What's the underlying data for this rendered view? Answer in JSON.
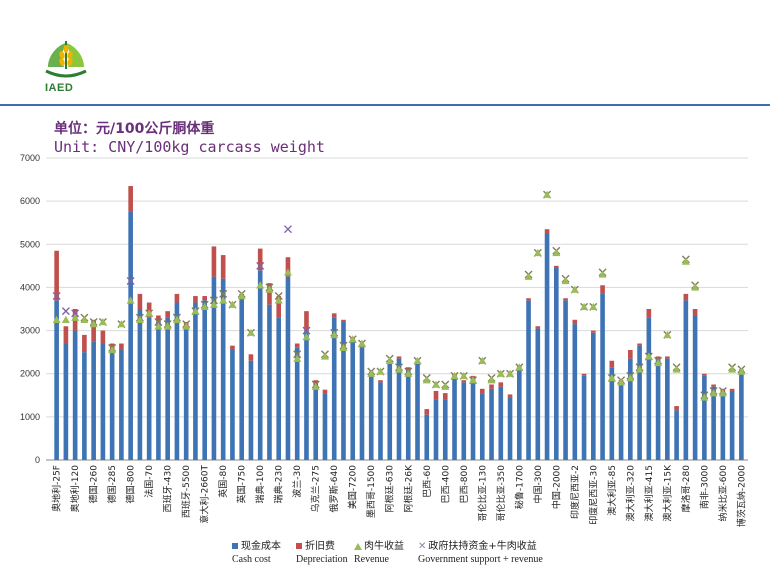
{
  "header": {
    "logo_text": "IAED",
    "unit_zh": "单位：元/100公斤胴体重",
    "unit_en": "Unit: CNY/100kg carcass weight"
  },
  "legend": {
    "cash_zh": "现金成本",
    "cash_en": "Cash cost",
    "dep_zh": "折旧费",
    "dep_en": "Depreciation",
    "rev_zh": "肉牛收益",
    "rev_en": "Revenue",
    "gov_zh": "政府扶持资金+牛肉收益",
    "gov_en": "Government support + revenue"
  },
  "colors": {
    "cash": "#3f74b4",
    "depreciation": "#c0504d",
    "revenue": "#9bbb59",
    "government": "#8064a2"
  },
  "chart_data": {
    "type": "bar",
    "ylim": [
      0,
      7000
    ],
    "yticks": [
      0,
      1000,
      2000,
      3000,
      4000,
      5000,
      6000,
      7000
    ],
    "grid": true,
    "categories": [
      {
        "label": "奥地利-25F",
        "labeled": true,
        "cash": 3700,
        "dep": 1150,
        "rev": 3250,
        "gov": 3800,
        "gov_purple": true
      },
      {
        "label": "",
        "labeled": false,
        "cash": 2700,
        "dep": 400,
        "rev": 3250,
        "gov": 3450,
        "gov_purple": true
      },
      {
        "label": "奥地利-120",
        "labeled": true,
        "cash": 3000,
        "dep": 500,
        "rev": 3300,
        "gov": 3400,
        "gov_purple": true
      },
      {
        "label": "",
        "labeled": false,
        "cash": 2500,
        "dep": 400,
        "rev": 3250,
        "gov": 3300,
        "gov_purple": false
      },
      {
        "label": "德国-260",
        "labeled": true,
        "cash": 2750,
        "dep": 500,
        "rev": 3150,
        "gov": 3200,
        "gov_purple": false
      },
      {
        "label": "",
        "labeled": false,
        "cash": 2700,
        "dep": 300,
        "rev": 3200,
        "gov": 3200,
        "gov_purple": false
      },
      {
        "label": "德国-285",
        "labeled": true,
        "cash": 2500,
        "dep": 200,
        "rev": 2550,
        "gov": 2600,
        "gov_purple": false
      },
      {
        "label": "",
        "labeled": false,
        "cash": 2550,
        "dep": 150,
        "rev": 3150,
        "gov": 3150,
        "gov_purple": false
      },
      {
        "label": "德国-800",
        "labeled": true,
        "cash": 5750,
        "dep": 600,
        "rev": 3700,
        "gov": 4150,
        "gov_purple": true
      },
      {
        "label": "",
        "labeled": false,
        "cash": 3500,
        "dep": 350,
        "rev": 3250,
        "gov": 3300,
        "gov_purple": false
      },
      {
        "label": "法国-70",
        "labeled": true,
        "cash": 3300,
        "dep": 350,
        "rev": 3400,
        "gov": 3400,
        "gov_purple": false
      },
      {
        "label": "",
        "labeled": false,
        "cash": 3200,
        "dep": 150,
        "rev": 3100,
        "gov": 3200,
        "gov_purple": false
      },
      {
        "label": "西班牙-430",
        "labeled": true,
        "cash": 3300,
        "dep": 150,
        "rev": 3100,
        "gov": 3150,
        "gov_purple": false
      },
      {
        "label": "",
        "labeled": false,
        "cash": 3650,
        "dep": 200,
        "rev": 3250,
        "gov": 3300,
        "gov_purple": false
      },
      {
        "label": "西班牙-5500",
        "labeled": true,
        "cash": 3100,
        "dep": 100,
        "rev": 3100,
        "gov": 3150,
        "gov_purple": false
      },
      {
        "label": "",
        "labeled": false,
        "cash": 3650,
        "dep": 150,
        "rev": 3450,
        "gov": 3450,
        "gov_purple": false
      },
      {
        "label": "意大利-2660T",
        "labeled": true,
        "cash": 3700,
        "dep": 100,
        "rev": 3550,
        "gov": 3600,
        "gov_purple": false
      },
      {
        "label": "",
        "labeled": false,
        "cash": 4250,
        "dep": 700,
        "rev": 3600,
        "gov": 3700,
        "gov_purple": false
      },
      {
        "label": "英国-80",
        "labeled": true,
        "cash": 4200,
        "dep": 550,
        "rev": 3700,
        "gov": 3850,
        "gov_purple": false
      },
      {
        "label": "",
        "labeled": false,
        "cash": 2550,
        "dep": 100,
        "rev": 3600,
        "gov": 3600,
        "gov_purple": false
      },
      {
        "label": "英国-750",
        "labeled": true,
        "cash": 3750,
        "dep": 100,
        "rev": 3800,
        "gov": 3850,
        "gov_purple": false
      },
      {
        "label": "",
        "labeled": false,
        "cash": 2300,
        "dep": 150,
        "rev": 2950,
        "gov": 2950,
        "gov_purple": false
      },
      {
        "label": "瑞典-100",
        "labeled": true,
        "cash": 4400,
        "dep": 500,
        "rev": 4050,
        "gov": 4500,
        "gov_purple": true
      },
      {
        "label": "",
        "labeled": false,
        "cash": 3600,
        "dep": 500,
        "rev": 3950,
        "gov": 4000,
        "gov_purple": false
      },
      {
        "label": "瑞典-230",
        "labeled": true,
        "cash": 3300,
        "dep": 500,
        "rev": 3700,
        "gov": 3800,
        "gov_purple": false
      },
      {
        "label": "",
        "labeled": false,
        "cash": 4250,
        "dep": 450,
        "rev": 4350,
        "gov": 5350,
        "gov_purple": true
      },
      {
        "label": "波兰-30",
        "labeled": true,
        "cash": 2600,
        "dep": 100,
        "rev": 2350,
        "gov": 2450,
        "gov_purple": false
      },
      {
        "label": "",
        "labeled": false,
        "cash": 3000,
        "dep": 450,
        "rev": 2850,
        "gov": 3000,
        "gov_purple": true
      },
      {
        "label": "乌克兰-275",
        "labeled": true,
        "cash": 1750,
        "dep": 100,
        "rev": 1700,
        "gov": 1750,
        "gov_purple": false
      },
      {
        "label": "",
        "labeled": false,
        "cash": 1550,
        "dep": 80,
        "rev": 2400,
        "gov": 2450,
        "gov_purple": false
      },
      {
        "label": "俄罗斯-640",
        "labeled": true,
        "cash": 3300,
        "dep": 100,
        "rev": 2900,
        "gov": 2950,
        "gov_purple": false
      },
      {
        "label": "",
        "labeled": false,
        "cash": 3200,
        "dep": 50,
        "rev": 2600,
        "gov": 2650,
        "gov_purple": false
      },
      {
        "label": "美国-7200",
        "labeled": true,
        "cash": 2800,
        "dep": 50,
        "rev": 2800,
        "gov": 2800,
        "gov_purple": false
      },
      {
        "label": "",
        "labeled": false,
        "cash": 2600,
        "dep": 80,
        "rev": 2700,
        "gov": 2700,
        "gov_purple": false
      },
      {
        "label": "墨西哥-1500",
        "labeled": true,
        "cash": 2000,
        "dep": 50,
        "rev": 2000,
        "gov": 2050,
        "gov_purple": false
      },
      {
        "label": "",
        "labeled": false,
        "cash": 1800,
        "dep": 50,
        "rev": 2050,
        "gov": 2050,
        "gov_purple": false
      },
      {
        "label": "阿根廷-630",
        "labeled": true,
        "cash": 2250,
        "dep": 50,
        "rev": 2300,
        "gov": 2350,
        "gov_purple": false
      },
      {
        "label": "",
        "labeled": false,
        "cash": 2350,
        "dep": 50,
        "rev": 2100,
        "gov": 2150,
        "gov_purple": false
      },
      {
        "label": "阿根廷-26K",
        "labeled": true,
        "cash": 2100,
        "dep": 50,
        "rev": 2000,
        "gov": 2050,
        "gov_purple": false
      },
      {
        "label": "",
        "labeled": false,
        "cash": 2250,
        "dep": 50,
        "rev": 2300,
        "gov": 2300,
        "gov_purple": false
      },
      {
        "label": "巴西-60",
        "labeled": true,
        "cash": 1050,
        "dep": 130,
        "rev": 1850,
        "gov": 1900,
        "gov_purple": false
      },
      {
        "label": "",
        "labeled": false,
        "cash": 1400,
        "dep": 200,
        "rev": 1750,
        "gov": 1750,
        "gov_purple": false
      },
      {
        "label": "巴西-400",
        "labeled": true,
        "cash": 1400,
        "dep": 150,
        "rev": 1700,
        "gov": 1750,
        "gov_purple": false
      },
      {
        "label": "",
        "labeled": false,
        "cash": 1950,
        "dep": 50,
        "rev": 1950,
        "gov": 1950,
        "gov_purple": false
      },
      {
        "label": "巴西-800",
        "labeled": true,
        "cash": 1800,
        "dep": 50,
        "rev": 1950,
        "gov": 1950,
        "gov_purple": false
      },
      {
        "label": "",
        "labeled": false,
        "cash": 1900,
        "dep": 50,
        "rev": 1850,
        "gov": 1850,
        "gov_purple": false
      },
      {
        "label": "哥伦比亚-130",
        "labeled": true,
        "cash": 1550,
        "dep": 100,
        "rev": 2300,
        "gov": 2300,
        "gov_purple": false
      },
      {
        "label": "",
        "labeled": false,
        "cash": 1650,
        "dep": 100,
        "rev": 1850,
        "gov": 1900,
        "gov_purple": false
      },
      {
        "label": "哥伦比亚-350",
        "labeled": true,
        "cash": 1700,
        "dep": 100,
        "rev": 2000,
        "gov": 2000,
        "gov_purple": false
      },
      {
        "label": "",
        "labeled": false,
        "cash": 1450,
        "dep": 70,
        "rev": 2000,
        "gov": 2000,
        "gov_purple": false
      },
      {
        "label": "秘鲁-1700",
        "labeled": true,
        "cash": 2150,
        "dep": 50,
        "rev": 2150,
        "gov": 2150,
        "gov_purple": false
      },
      {
        "label": "",
        "labeled": false,
        "cash": 3700,
        "dep": 50,
        "rev": 4250,
        "gov": 4300,
        "gov_purple": false
      },
      {
        "label": "中国-300",
        "labeled": true,
        "cash": 3050,
        "dep": 50,
        "rev": 4800,
        "gov": 4800,
        "gov_purple": false
      },
      {
        "label": "",
        "labeled": false,
        "cash": 5250,
        "dep": 100,
        "rev": 6150,
        "gov": 6150,
        "gov_purple": false
      },
      {
        "label": "中国-2000",
        "labeled": true,
        "cash": 4450,
        "dep": 50,
        "rev": 4800,
        "gov": 4850,
        "gov_purple": false
      },
      {
        "label": "",
        "labeled": false,
        "cash": 3700,
        "dep": 50,
        "rev": 4150,
        "gov": 4200,
        "gov_purple": false
      },
      {
        "label": "印度尼西亚-2",
        "labeled": true,
        "cash": 3150,
        "dep": 100,
        "rev": 3950,
        "gov": 3950,
        "gov_purple": false
      },
      {
        "label": "",
        "labeled": false,
        "cash": 1950,
        "dep": 50,
        "rev": 3550,
        "gov": 3550,
        "gov_purple": false
      },
      {
        "label": "印度尼西亚-30",
        "labeled": true,
        "cash": 2950,
        "dep": 50,
        "rev": 3550,
        "gov": 3550,
        "gov_purple": false
      },
      {
        "label": "",
        "labeled": false,
        "cash": 3850,
        "dep": 200,
        "rev": 4300,
        "gov": 4350,
        "gov_purple": false
      },
      {
        "label": "澳大利亚-85",
        "labeled": true,
        "cash": 2150,
        "dep": 150,
        "rev": 1900,
        "gov": 1900,
        "gov_purple": false
      },
      {
        "label": "",
        "labeled": false,
        "cash": 1750,
        "dep": 100,
        "rev": 1800,
        "gov": 1850,
        "gov_purple": false
      },
      {
        "label": "澳大利亚-320",
        "labeled": true,
        "cash": 2350,
        "dep": 200,
        "rev": 1900,
        "gov": 1950,
        "gov_purple": false
      },
      {
        "label": "",
        "labeled": false,
        "cash": 2650,
        "dep": 50,
        "rev": 2100,
        "gov": 2150,
        "gov_purple": false
      },
      {
        "label": "澳大利亚-415",
        "labeled": true,
        "cash": 3300,
        "dep": 200,
        "rev": 2400,
        "gov": 2400,
        "gov_purple": false
      },
      {
        "label": "",
        "labeled": false,
        "cash": 2350,
        "dep": 50,
        "rev": 2250,
        "gov": 2300,
        "gov_purple": false
      },
      {
        "label": "澳大利亚-15K",
        "labeled": true,
        "cash": 2350,
        "dep": 50,
        "rev": 2900,
        "gov": 2900,
        "gov_purple": false
      },
      {
        "label": "",
        "labeled": false,
        "cash": 1150,
        "dep": 100,
        "rev": 2100,
        "gov": 2150,
        "gov_purple": false
      },
      {
        "label": "摩洛哥-280",
        "labeled": true,
        "cash": 3700,
        "dep": 150,
        "rev": 4600,
        "gov": 4650,
        "gov_purple": false
      },
      {
        "label": "",
        "labeled": false,
        "cash": 3350,
        "dep": 150,
        "rev": 4000,
        "gov": 4050,
        "gov_purple": false
      },
      {
        "label": "南非-3000",
        "labeled": true,
        "cash": 1950,
        "dep": 50,
        "rev": 1450,
        "gov": 1500,
        "gov_purple": false
      },
      {
        "label": "",
        "labeled": false,
        "cash": 1700,
        "dep": 50,
        "rev": 1550,
        "gov": 1600,
        "gov_purple": false
      },
      {
        "label": "纳米比亚-600",
        "labeled": true,
        "cash": 1600,
        "dep": 50,
        "rev": 1550,
        "gov": 1600,
        "gov_purple": false
      },
      {
        "label": "",
        "labeled": false,
        "cash": 1600,
        "dep": 50,
        "rev": 2100,
        "gov": 2150,
        "gov_purple": false
      },
      {
        "label": "博茨瓦纳-2000",
        "labeled": true,
        "cash": 2050,
        "dep": 50,
        "rev": 2050,
        "gov": 2100,
        "gov_purple": false
      }
    ]
  }
}
